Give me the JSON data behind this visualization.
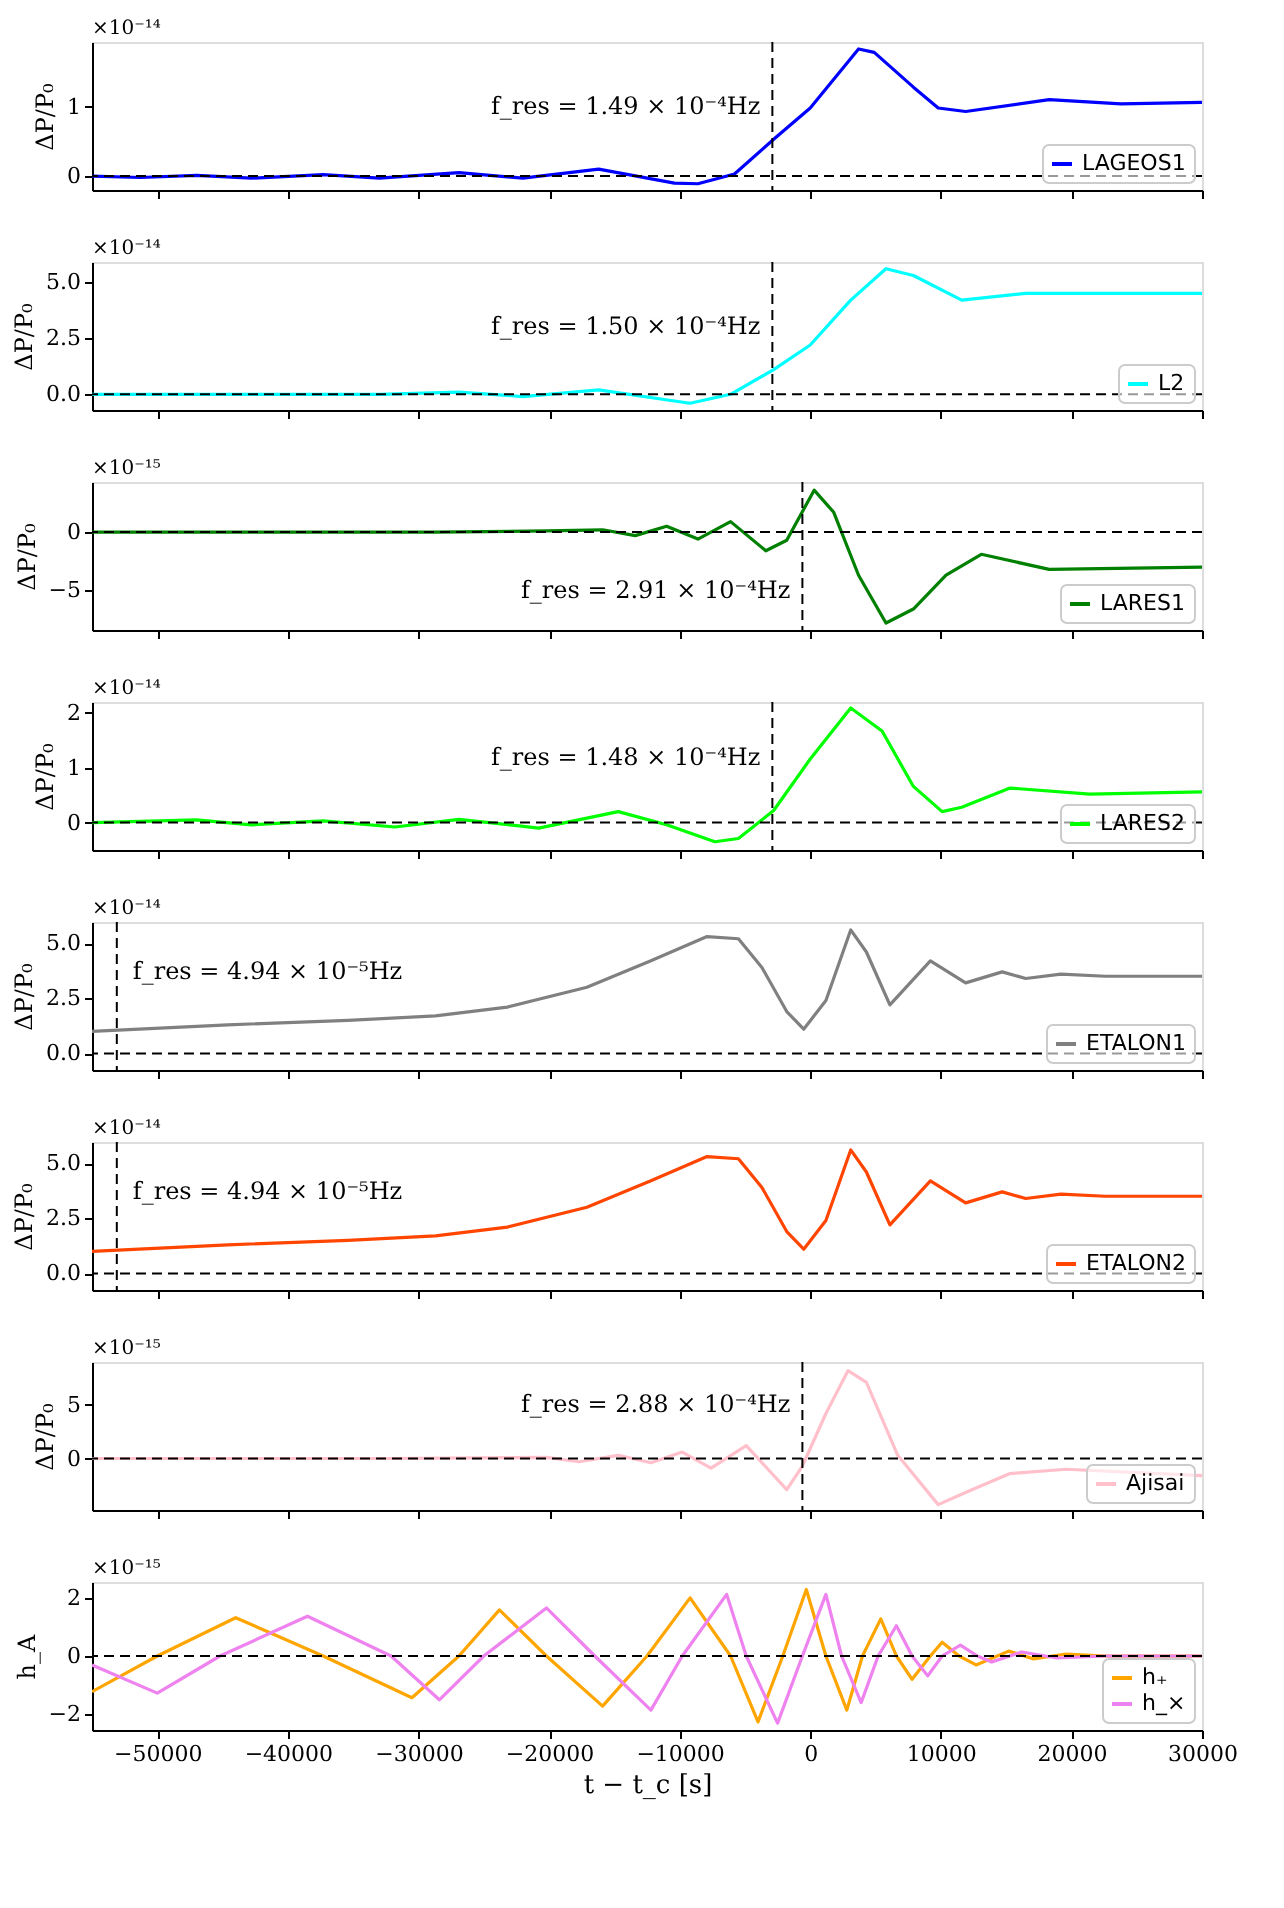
{
  "chart_data": [
    {
      "type": "line",
      "ylabel": "ΔP/P₀",
      "annotations": [
        "×10⁻¹⁴",
        "f_res = 1.49 × 10⁻⁴Hz"
      ],
      "xlim": [
        -55000,
        30000
      ],
      "ylim": [
        -0.2,
        1.93
      ],
      "yticks": [
        0,
        1
      ],
      "tick_labels": "y",
      "legend": "bottom right",
      "grid": false,
      "xticks": [
        -50000,
        -40000,
        -30000,
        -20000,
        -10000,
        0,
        10000,
        20000,
        30000
      ],
      "ref_lines": [
        {
          "axis": "y",
          "value": 0,
          "color": "#000000",
          "line_style": "dashed"
        },
        {
          "axis": "x",
          "value": -2900,
          "color": "#000000",
          "line_style": "dashed"
        }
      ],
      "series": [
        {
          "name": "LAGEOS1",
          "color": "#0000ff",
          "x": [
            -55000,
            -51300,
            -47000,
            -42800,
            -37300,
            -33000,
            -26900,
            -22000,
            -16200,
            -10400,
            -8600,
            -5800,
            -2800,
            0,
            3700,
            4900,
            7900,
            9800,
            11900,
            18300,
            23800,
            30000
          ],
          "values": [
            0,
            -0.02,
            0.01,
            -0.03,
            0.02,
            -0.03,
            0.05,
            -0.03,
            0.1,
            -0.1,
            -0.11,
            0.03,
            0.53,
            0.98,
            1.83,
            1.78,
            1.28,
            0.98,
            0.93,
            1.1,
            1.04,
            1.06
          ]
        }
      ]
    },
    {
      "type": "line",
      "ylabel": "ΔP/P₀",
      "annotations": [
        "×10⁻¹⁴",
        "f_res = 1.50 × 10⁻⁴Hz"
      ],
      "xlim": [
        -55000,
        30000
      ],
      "ylim": [
        -0.7,
        5.9
      ],
      "yticks": [
        {
          "value": 0,
          "label": "0.0"
        },
        2.5,
        {
          "value": 5,
          "label": "5.0"
        }
      ],
      "tick_labels": "y",
      "legend": "bottom right",
      "grid": false,
      "xticks": [
        -50000,
        -40000,
        -30000,
        -20000,
        -10000,
        0,
        10000,
        20000,
        30000
      ],
      "ref_lines": [
        {
          "axis": "y",
          "value": 0,
          "color": "#000000",
          "line_style": "dashed"
        },
        {
          "axis": "x",
          "value": -2900,
          "color": "#000000",
          "line_style": "dashed"
        }
      ],
      "series": [
        {
          "name": "L2",
          "color": "#00ffff",
          "x": [
            -55000,
            -42800,
            -33000,
            -26900,
            -22000,
            -16200,
            -10400,
            -9200,
            -6100,
            -2800,
            0,
            3100,
            5800,
            7900,
            11600,
            16500,
            23800,
            30000
          ],
          "values": [
            0,
            0,
            0,
            0.1,
            -0.1,
            0.2,
            -0.3,
            -0.4,
            0,
            1.1,
            2.2,
            4.2,
            5.6,
            5.3,
            4.2,
            4.5,
            4.5,
            4.5
          ]
        }
      ]
    },
    {
      "type": "line",
      "ylabel": "ΔP/P₀",
      "annotations": [
        "×10⁻¹⁵",
        "f_res = 2.91 × 10⁻⁴Hz"
      ],
      "xlim": [
        -55000,
        30000
      ],
      "ylim": [
        -8.4,
        4.3
      ],
      "yticks": [
        {
          "value": -5,
          "label": "−5"
        },
        0
      ],
      "tick_labels": "y",
      "legend": "bottom right",
      "grid": false,
      "xticks": [
        -50000,
        -40000,
        -30000,
        -20000,
        -10000,
        0,
        10000,
        20000,
        30000
      ],
      "ref_lines": [
        {
          "axis": "y",
          "value": 0,
          "color": "#000000",
          "line_style": "dashed"
        },
        {
          "axis": "x",
          "value": -600,
          "color": "#000000",
          "line_style": "dashed"
        }
      ],
      "series": [
        {
          "name": "LARES1",
          "color": "#008000",
          "x": [
            -55000,
            -38500,
            -28700,
            -20200,
            -15900,
            -13400,
            -11000,
            -8600,
            -6100,
            -3400,
            -1800,
            300,
            1800,
            3700,
            5800,
            7900,
            10400,
            13100,
            18300,
            30000
          ],
          "values": [
            0,
            0,
            0,
            0.1,
            0.2,
            -0.3,
            0.5,
            -0.6,
            0.9,
            -1.6,
            -0.7,
            3.6,
            1.7,
            -3.7,
            -7.8,
            -6.6,
            -3.7,
            -1.9,
            -3.2,
            -3.0
          ]
        }
      ]
    },
    {
      "type": "line",
      "ylabel": "ΔP/P₀",
      "annotations": [
        "×10⁻¹⁴",
        "f_res = 1.48 × 10⁻⁴Hz"
      ],
      "xlim": [
        -55000,
        30000
      ],
      "ylim": [
        -0.5,
        2.2
      ],
      "yticks": [
        0,
        1,
        2
      ],
      "tick_labels": "y",
      "legend": "bottom right",
      "grid": false,
      "xticks": [
        -50000,
        -40000,
        -30000,
        -20000,
        -10000,
        0,
        10000,
        20000,
        30000
      ],
      "ref_lines": [
        {
          "axis": "y",
          "value": 0,
          "color": "#000000",
          "line_style": "dashed"
        },
        {
          "axis": "x",
          "value": -2900,
          "color": "#000000",
          "line_style": "dashed"
        }
      ],
      "series": [
        {
          "name": "LARES2",
          "color": "#00ff00",
          "x": [
            -55000,
            -47000,
            -42800,
            -37300,
            -31800,
            -26900,
            -20800,
            -14700,
            -11000,
            -7300,
            -5500,
            -2800,
            0,
            3100,
            5500,
            7900,
            10100,
            11600,
            15300,
            21400,
            30000
          ],
          "values": [
            0,
            0.05,
            -0.04,
            0.03,
            -0.08,
            0.06,
            -0.1,
            0.2,
            -0.04,
            -0.35,
            -0.29,
            0.22,
            1.16,
            2.09,
            1.67,
            0.66,
            0.2,
            0.28,
            0.63,
            0.52,
            0.56
          ]
        }
      ]
    },
    {
      "type": "line",
      "ylabel": "ΔP/P₀",
      "annotations": [
        "×10⁻¹⁴",
        "f_res = 4.94 × 10⁻⁵Hz"
      ],
      "xlim": [
        -55000,
        30000
      ],
      "ylim": [
        -0.75,
        5.96
      ],
      "yticks": [
        {
          "value": 0,
          "label": "0.0"
        },
        2.5,
        {
          "value": 5,
          "label": "5.0"
        }
      ],
      "tick_labels": "y",
      "legend": "bottom right",
      "grid": false,
      "xticks": [
        -50000,
        -40000,
        -30000,
        -20000,
        -10000,
        0,
        10000,
        20000,
        30000
      ],
      "ref_lines": [
        {
          "axis": "y",
          "value": 0,
          "color": "#000000",
          "line_style": "dashed"
        },
        {
          "axis": "x",
          "value": -53100,
          "color": "#000000",
          "line_style": "dashed"
        }
      ],
      "series": [
        {
          "name": "ETALON1",
          "color": "#808080",
          "x": [
            -55000,
            -44600,
            -35400,
            -28700,
            -23200,
            -17100,
            -12200,
            -7900,
            -5500,
            -3700,
            -1800,
            -500,
            1200,
            3100,
            4300,
            6100,
            9200,
            11900,
            14700,
            16500,
            19200,
            22600,
            30000
          ],
          "values": [
            1,
            1.3,
            1.5,
            1.7,
            2.1,
            3,
            4.2,
            5.3,
            5.2,
            3.9,
            1.9,
            1.1,
            2.4,
            5.6,
            4.6,
            2.2,
            4.2,
            3.2,
            3.7,
            3.4,
            3.6,
            3.5,
            3.5
          ]
        }
      ]
    },
    {
      "type": "line",
      "ylabel": "ΔP/P₀",
      "annotations": [
        "×10⁻¹⁴",
        "f_res = 4.94 × 10⁻⁵Hz"
      ],
      "xlim": [
        -55000,
        30000
      ],
      "ylim": [
        -0.75,
        5.96
      ],
      "yticks": [
        {
          "value": 0,
          "label": "0.0"
        },
        2.5,
        {
          "value": 5,
          "label": "5.0"
        }
      ],
      "tick_labels": "y",
      "legend": "bottom right",
      "grid": false,
      "xticks": [
        -50000,
        -40000,
        -30000,
        -20000,
        -10000,
        0,
        10000,
        20000,
        30000
      ],
      "ref_lines": [
        {
          "axis": "y",
          "value": 0,
          "color": "#000000",
          "line_style": "dashed"
        },
        {
          "axis": "x",
          "value": -53100,
          "color": "#000000",
          "line_style": "dashed"
        }
      ],
      "series": [
        {
          "name": "ETALON2",
          "color": "#ff4500",
          "x": [
            -55000,
            -44600,
            -35400,
            -28700,
            -23200,
            -17100,
            -12200,
            -7900,
            -5500,
            -3700,
            -1800,
            -500,
            1200,
            3100,
            4300,
            6100,
            9200,
            11900,
            14700,
            16500,
            19200,
            22600,
            30000
          ],
          "values": [
            1,
            1.3,
            1.5,
            1.7,
            2.1,
            3,
            4.2,
            5.3,
            5.2,
            3.9,
            1.9,
            1.1,
            2.4,
            5.6,
            4.6,
            2.2,
            4.2,
            3.2,
            3.7,
            3.4,
            3.6,
            3.5,
            3.5
          ]
        }
      ]
    },
    {
      "type": "line",
      "ylabel": "ΔP/P₀",
      "annotations": [
        "×10⁻¹⁵",
        "f_res = 2.88 × 10⁻⁴Hz"
      ],
      "xlim": [
        -55000,
        30000
      ],
      "ylim": [
        -4.8,
        9.0
      ],
      "yticks": [
        0,
        5
      ],
      "tick_labels": "y",
      "legend": "bottom right",
      "grid": false,
      "xticks": [
        -50000,
        -40000,
        -30000,
        -20000,
        -10000,
        0,
        10000,
        20000,
        30000
      ],
      "ref_lines": [
        {
          "axis": "y",
          "value": 0,
          "color": "#000000",
          "line_style": "dashed"
        },
        {
          "axis": "x",
          "value": -600,
          "color": "#000000",
          "line_style": "dashed"
        }
      ],
      "series": [
        {
          "name": "Ajisai",
          "color": "#ffc0cb",
          "x": [
            -55000,
            -32400,
            -20200,
            -17700,
            -14700,
            -12200,
            -9800,
            -7600,
            -4900,
            -1800,
            -600,
            1200,
            2900,
            4300,
            6700,
            9800,
            12200,
            15300,
            19600,
            30000
          ],
          "values": [
            0,
            0,
            0.1,
            -0.3,
            0.3,
            -0.4,
            0.6,
            -0.9,
            1.2,
            -2.9,
            -0.7,
            4.2,
            8.2,
            7.1,
            0.3,
            -4.3,
            -3,
            -1.4,
            -1,
            -1.6
          ]
        }
      ]
    },
    {
      "type": "line",
      "ylabel": "h_A",
      "xlabel": "t − t_c [s]",
      "annotations": [
        "×10⁻¹⁵"
      ],
      "xlim": [
        -55000,
        30000
      ],
      "ylim": [
        -2.57,
        2.57
      ],
      "yticks": [
        {
          "value": -2,
          "label": "−2"
        },
        0,
        2
      ],
      "legend": "bottom right",
      "grid": false,
      "xticks": [
        {
          "value": -50000,
          "label": "−50000"
        },
        {
          "value": -40000,
          "label": "−40000"
        },
        {
          "value": -30000,
          "label": "−30000"
        },
        {
          "value": -20000,
          "label": "−20000"
        },
        {
          "value": -10000,
          "label": "−10000"
        },
        0,
        10000,
        20000,
        30000
      ],
      "ref_lines": [
        {
          "axis": "y",
          "value": 0,
          "color": "#000000",
          "line_style": "dashed"
        }
      ],
      "series": [
        {
          "name": "h₊",
          "color": "#ffa500",
          "x": [
            -55000,
            -50000,
            -44000,
            -37300,
            -30500,
            -26900,
            -23800,
            -20200,
            -15900,
            -12500,
            -9200,
            -6100,
            -4000,
            -2100,
            -300,
            1200,
            2800,
            4000,
            5400,
            6600,
            7800,
            9200,
            10100,
            11400,
            12700,
            15200,
            17100,
            19600,
            22600,
            30000
          ],
          "values": [
            -1.24,
            0,
            1.33,
            0,
            -1.45,
            0,
            1.6,
            0,
            -1.74,
            0,
            2.02,
            0,
            -2.29,
            0,
            2.31,
            0,
            -1.88,
            0,
            1.29,
            0,
            -0.81,
            0,
            0.48,
            0,
            -0.31,
            0.17,
            -0.1,
            0.07,
            0,
            0
          ]
        },
        {
          "name": "h_×",
          "color": "#ee82ee",
          "x": [
            -55000,
            -50000,
            -45200,
            -38500,
            -32100,
            -28400,
            -25000,
            -20200,
            -16500,
            -12200,
            -9800,
            -6400,
            -4900,
            -2500,
            -600,
            1200,
            2400,
            3900,
            5200,
            6600,
            7800,
            9000,
            10100,
            11500,
            12800,
            13900,
            16200,
            18900,
            22600,
            30000
          ],
          "values": [
            -0.31,
            -1.29,
            0,
            1.38,
            0,
            -1.52,
            0,
            1.67,
            0,
            -1.88,
            0,
            2.14,
            0,
            -2.33,
            0,
            2.14,
            0,
            -1.62,
            0,
            1.05,
            0,
            -0.69,
            0,
            0.38,
            0,
            -0.21,
            0.14,
            -0.07,
            0,
            0
          ]
        }
      ]
    }
  ]
}
